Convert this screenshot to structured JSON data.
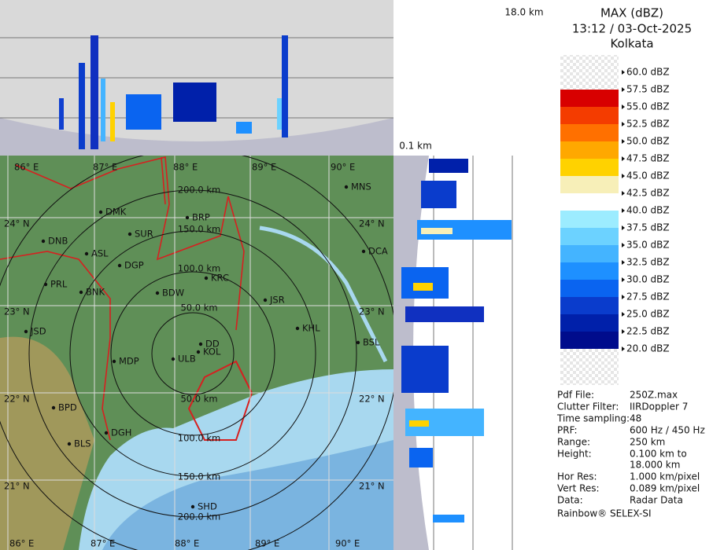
{
  "header": {
    "title": "MAX (dBZ)",
    "timestamp": "13:12 / 03-Oct-2025",
    "location": "Kolkata"
  },
  "scale": {
    "labels": [
      "60.0 dBZ",
      "57.5 dBZ",
      "55.0 dBZ",
      "52.5 dBZ",
      "50.0 dBZ",
      "47.5 dBZ",
      "45.0 dBZ",
      "42.5 dBZ",
      "40.0 dBZ",
      "37.5 dBZ",
      "35.0 dBZ",
      "32.5 dBZ",
      "30.0 dBZ",
      "27.5 dBZ",
      "25.0 dBZ",
      "22.5 dBZ",
      "20.0 dBZ"
    ],
    "colors": [
      "#f4f4f4",
      "#9c0000",
      "#d80000",
      "#f43c00",
      "#ff7000",
      "#ffa800",
      "#ffd200",
      "#f7efb8",
      "#ffffff",
      "#9cecff",
      "#6cd2ff",
      "#44b4ff",
      "#1e90ff",
      "#0a64f0",
      "#0a3ccc",
      "#0020aa",
      "#000c8c"
    ]
  },
  "info": {
    "rows": [
      [
        "Pdf File:",
        "250Z.max"
      ],
      [
        "Clutter Filter:",
        "IIRDoppler 7"
      ],
      [
        "Time sampling:",
        "48"
      ],
      [
        "PRF:",
        "600 Hz / 450 Hz"
      ],
      [
        "Range:",
        "250 km"
      ],
      [
        "Height:",
        "0.100 km to"
      ],
      [
        "",
        "18.000 km"
      ],
      [
        "Hor Res:",
        "1.000 km/pixel"
      ],
      [
        "Vert Res:",
        "0.089 km/pixel"
      ],
      [
        "Data:",
        "Radar Data"
      ]
    ],
    "footer": "Rainbow® SELEX-SI"
  },
  "profile": {
    "top_label": "18.0 km",
    "bottom_label": "0.1 km"
  },
  "map": {
    "lon_top": [
      "86° E",
      "87° E",
      "88° E",
      "89° E",
      "90° E"
    ],
    "lon_bottom": [
      "86° E",
      "87° E",
      "88° E",
      "89° E",
      "90° E"
    ],
    "lat_left": [
      "24° N",
      "23° N",
      "22° N",
      "21° N"
    ],
    "lat_right": [
      "24° N",
      "23° N",
      "22° N",
      "21° N"
    ],
    "range_up": [
      "200.0 km",
      "150.0 km",
      "100.0 km",
      "50.0 km"
    ],
    "range_down": [
      "50.0 km",
      "100.0 km",
      "150.0 km",
      "200.0 km"
    ],
    "cities": [
      "MNS",
      "BRP",
      "DMK",
      "SUR",
      "DNB",
      "ASL",
      "DGP",
      "DCA",
      "KRC",
      "PRL",
      "BNK",
      "BDW",
      "JSR",
      "KHL",
      "JSD",
      "DD",
      "BSL",
      "KOL",
      "MDP",
      "ULB",
      "BPD",
      "DGH",
      "BLS",
      "SHD"
    ]
  }
}
